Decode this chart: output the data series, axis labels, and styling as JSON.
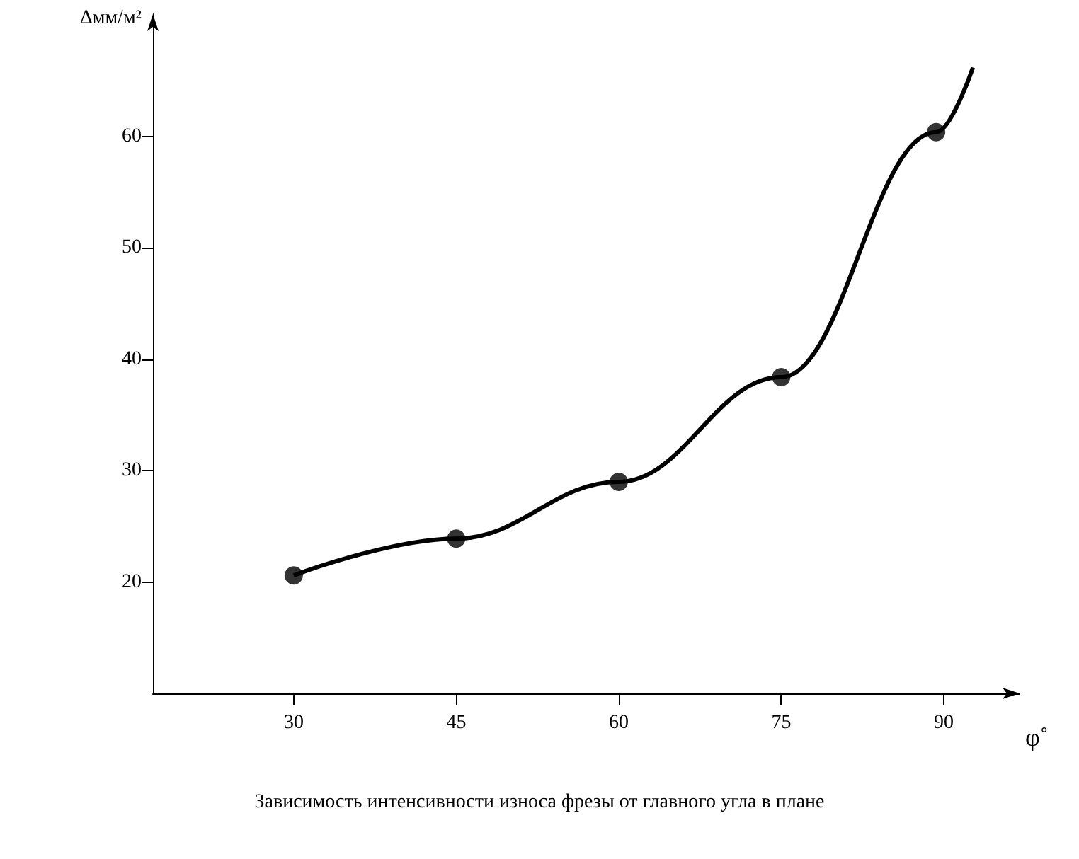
{
  "chart_data": {
    "type": "line",
    "title": "Зависимость интенсивности износа фрезы от главного угла в плане",
    "xlabel": "φ˚",
    "ylabel": "Δмм/м²",
    "xlim": [
      17,
      97
    ],
    "xticks": [
      30,
      45,
      60,
      75,
      90
    ],
    "ylim": [
      10,
      71
    ],
    "yticks": [
      20,
      30,
      40,
      50,
      60
    ],
    "grid": false,
    "series": [
      {
        "color": "#000000",
        "marker": "none",
        "x": [
          30,
          45,
          60,
          75,
          89.3,
          92.7
        ],
        "values": [
          20.6,
          23.9,
          29,
          38.4,
          60.4,
          66.2
        ]
      },
      {
        "type": "scatter",
        "color": "#000000",
        "marker": "circle",
        "x": [
          30,
          45,
          60,
          75,
          89.3
        ],
        "values": [
          20.6,
          23.9,
          29,
          38.4,
          60.4
        ]
      }
    ]
  }
}
